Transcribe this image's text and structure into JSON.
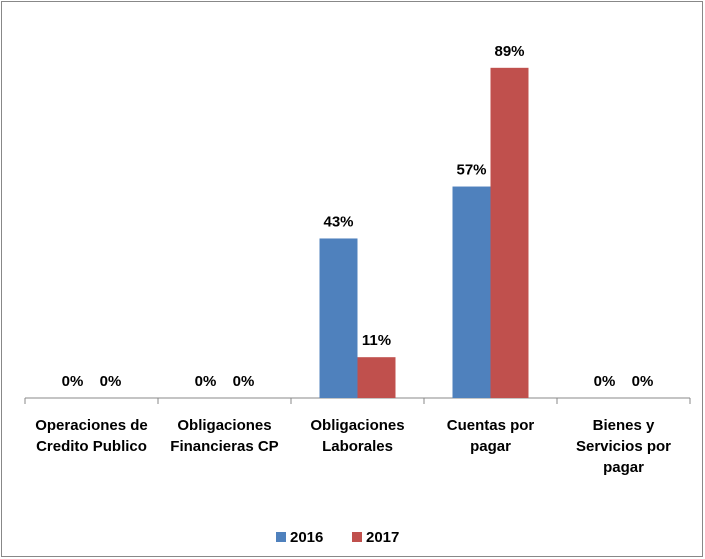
{
  "chart_data": {
    "type": "bar",
    "categories": [
      "Operaciones de Credito Publico",
      "Obligaciones Financieras CP",
      "Obligaciones Laborales",
      "Cuentas por pagar",
      "Bienes y Servicios por pagar"
    ],
    "series": [
      {
        "name": "2016",
        "color": "#4f81bd",
        "values": [
          0,
          0,
          43,
          57,
          0
        ],
        "value_labels": [
          "0%",
          "0%",
          "43%",
          "57%",
          "0%"
        ]
      },
      {
        "name": "2017",
        "color": "#c0504d",
        "values": [
          0,
          0,
          11,
          89,
          0
        ],
        "value_labels": [
          "0%",
          "0%",
          "11%",
          "89%",
          "0%"
        ]
      }
    ],
    "ylim": [
      0,
      100
    ],
    "legend": "bottom"
  }
}
